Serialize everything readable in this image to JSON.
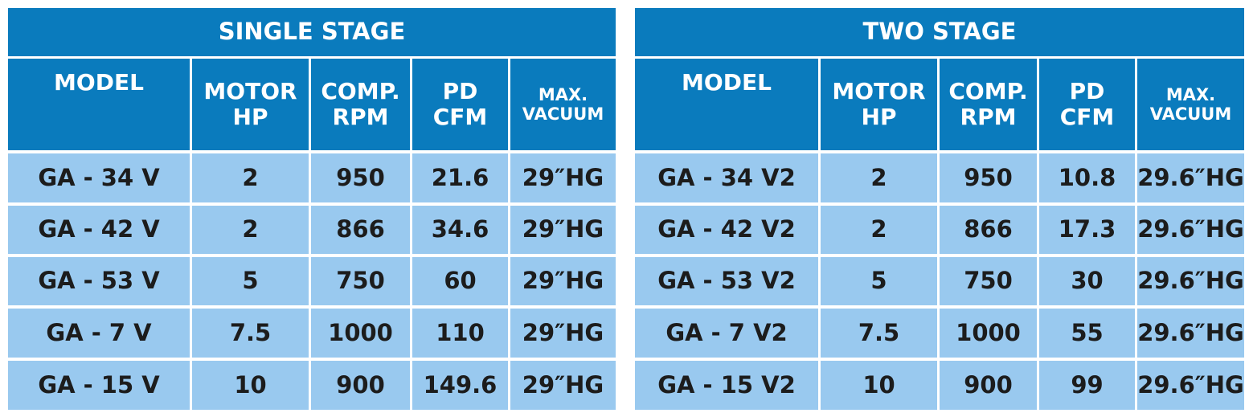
{
  "tables": [
    {
      "title": "SINGLE STAGE",
      "headers": [
        [
          "MODEL"
        ],
        [
          "MOTOR",
          "HP"
        ],
        [
          "COMP.",
          "RPM"
        ],
        [
          "PD",
          "CFM"
        ],
        [
          "MAX.",
          "VACUUM"
        ]
      ],
      "rows": [
        [
          "GA - 34 V",
          "2",
          "950",
          "21.6",
          "29″HG"
        ],
        [
          "GA - 42 V",
          "2",
          "866",
          "34.6",
          "29″HG"
        ],
        [
          "GA - 53 V",
          "5",
          "750",
          "60",
          "29″HG"
        ],
        [
          "GA - 7 V",
          "7.5",
          "1000",
          "110",
          "29″HG"
        ],
        [
          "GA - 15 V",
          "10",
          "900",
          "149.6",
          "29″HG"
        ]
      ]
    },
    {
      "title": "TWO STAGE",
      "headers": [
        [
          "MODEL"
        ],
        [
          "MOTOR",
          "HP"
        ],
        [
          "COMP.",
          "RPM"
        ],
        [
          "PD",
          "CFM"
        ],
        [
          "MAX.",
          "VACUUM"
        ]
      ],
      "rows": [
        [
          "GA - 34 V2",
          "2",
          "950",
          "10.8",
          "29.6″HG"
        ],
        [
          "GA - 42 V2",
          "2",
          "866",
          "17.3",
          "29.6″HG"
        ],
        [
          "GA - 53 V2",
          "5",
          "750",
          "30",
          "29.6″HG"
        ],
        [
          "GA - 7 V2",
          "7.5",
          "1000",
          "55",
          "29.6″HG"
        ],
        [
          "GA - 15 V2",
          "10",
          "900",
          "99",
          "29.6″HG"
        ]
      ]
    }
  ]
}
